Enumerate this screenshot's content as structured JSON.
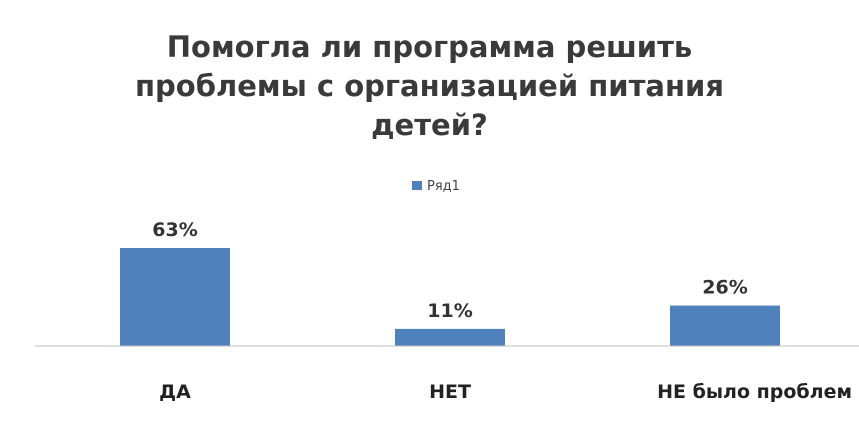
{
  "chart_data": {
    "type": "bar",
    "title": "Помогла ли программа решить проблемы с организацией питания детей?",
    "categories": [
      "ДА",
      "НЕТ",
      "НЕ было проблем"
    ],
    "series": [
      {
        "name": "Ряд1",
        "values": [
          63,
          11,
          26
        ],
        "labels": [
          "63%",
          "11%",
          "26%"
        ],
        "color": "#4f81bd"
      }
    ],
    "ylim": [
      0,
      70
    ],
    "legend_position": "top-center",
    "grid": false,
    "axis_color": "#bfbfbf"
  }
}
